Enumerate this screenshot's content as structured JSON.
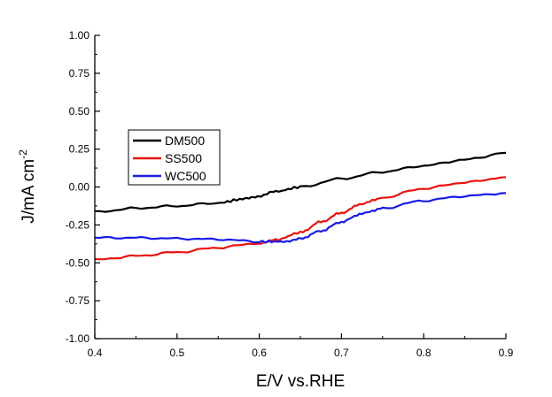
{
  "chart_data": {
    "type": "line",
    "xlabel": "E/V vs.RHE",
    "ylabel": {
      "main": "J/mA cm",
      "superscript": "-2"
    },
    "xlim": [
      0.4,
      0.9
    ],
    "ylim": [
      -1.0,
      1.0
    ],
    "x_ticks": [
      "0.4",
      "0.5",
      "0.6",
      "0.7",
      "0.8",
      "0.9"
    ],
    "y_ticks": [
      "1.00",
      "0.75",
      "0.50",
      "0.25",
      "0.00",
      "-0.25",
      "-0.50",
      "-0.75",
      "-1.00"
    ],
    "grid": false,
    "legend_position": "upper-left",
    "series": [
      {
        "name": "DM500",
        "color": "#000000",
        "points": [
          [
            0.4,
            -0.165
          ],
          [
            0.45,
            -0.14
          ],
          [
            0.5,
            -0.125
          ],
          [
            0.55,
            -0.105
          ],
          [
            0.58,
            -0.08
          ],
          [
            0.6,
            -0.06
          ],
          [
            0.62,
            -0.03
          ],
          [
            0.65,
            0.0
          ],
          [
            0.7,
            0.055
          ],
          [
            0.75,
            0.1
          ],
          [
            0.8,
            0.14
          ],
          [
            0.85,
            0.18
          ],
          [
            0.9,
            0.225
          ]
        ]
      },
      {
        "name": "SS500",
        "color": "#e8130f",
        "points": [
          [
            0.4,
            -0.48
          ],
          [
            0.45,
            -0.455
          ],
          [
            0.5,
            -0.43
          ],
          [
            0.55,
            -0.4
          ],
          [
            0.6,
            -0.37
          ],
          [
            0.62,
            -0.35
          ],
          [
            0.65,
            -0.3
          ],
          [
            0.675,
            -0.23
          ],
          [
            0.7,
            -0.17
          ],
          [
            0.725,
            -0.11
          ],
          [
            0.75,
            -0.07
          ],
          [
            0.8,
            -0.01
          ],
          [
            0.85,
            0.03
          ],
          [
            0.9,
            0.065
          ]
        ]
      },
      {
        "name": "WC500",
        "color": "#1a1ae6",
        "points": [
          [
            0.4,
            -0.335
          ],
          [
            0.45,
            -0.335
          ],
          [
            0.5,
            -0.34
          ],
          [
            0.55,
            -0.345
          ],
          [
            0.6,
            -0.36
          ],
          [
            0.63,
            -0.36
          ],
          [
            0.65,
            -0.34
          ],
          [
            0.675,
            -0.29
          ],
          [
            0.7,
            -0.23
          ],
          [
            0.725,
            -0.175
          ],
          [
            0.75,
            -0.14
          ],
          [
            0.8,
            -0.09
          ],
          [
            0.85,
            -0.06
          ],
          [
            0.9,
            -0.04
          ]
        ]
      }
    ]
  }
}
